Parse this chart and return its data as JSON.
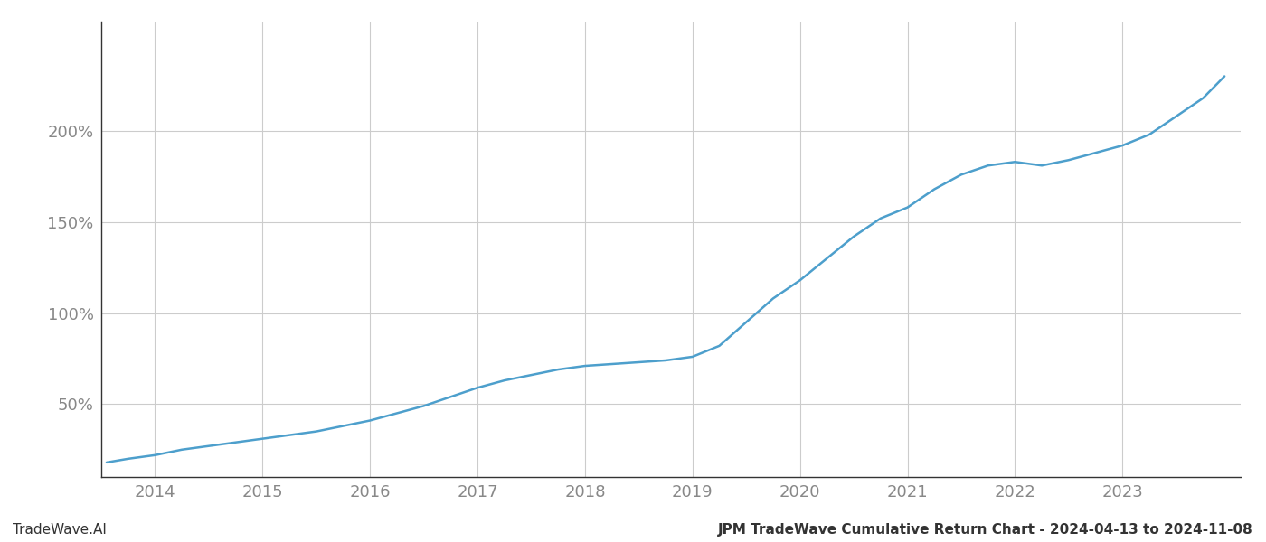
{
  "title": "JPM TradeWave Cumulative Return Chart - 2024-04-13 to 2024-11-08",
  "watermark_left": "TradeWave.AI",
  "line_color": "#4d9fcc",
  "background_color": "#ffffff",
  "grid_color": "#cccccc",
  "x_years": [
    2013.55,
    2013.75,
    2014.0,
    2014.25,
    2014.5,
    2014.75,
    2015.0,
    2015.25,
    2015.5,
    2015.75,
    2016.0,
    2016.25,
    2016.5,
    2016.75,
    2017.0,
    2017.25,
    2017.5,
    2017.75,
    2018.0,
    2018.25,
    2018.5,
    2018.75,
    2019.0,
    2019.25,
    2019.5,
    2019.75,
    2020.0,
    2020.25,
    2020.5,
    2020.75,
    2021.0,
    2021.25,
    2021.5,
    2021.75,
    2022.0,
    2022.25,
    2022.5,
    2022.75,
    2023.0,
    2023.25,
    2023.5,
    2023.75,
    2023.95
  ],
  "y_values": [
    18,
    20,
    22,
    25,
    27,
    29,
    31,
    33,
    35,
    38,
    41,
    45,
    49,
    54,
    59,
    63,
    66,
    69,
    71,
    72,
    73,
    74,
    76,
    82,
    95,
    108,
    118,
    130,
    142,
    152,
    158,
    168,
    176,
    181,
    183,
    181,
    184,
    188,
    192,
    198,
    208,
    218,
    230
  ],
  "xlim": [
    2013.5,
    2024.1
  ],
  "ylim": [
    10,
    260
  ],
  "yticks": [
    50,
    100,
    150,
    200
  ],
  "xticks": [
    2014,
    2015,
    2016,
    2017,
    2018,
    2019,
    2020,
    2021,
    2022,
    2023
  ],
  "tick_color": "#888888",
  "tick_fontsize": 13,
  "footer_fontsize": 11,
  "line_width": 1.8,
  "spine_color": "#333333"
}
